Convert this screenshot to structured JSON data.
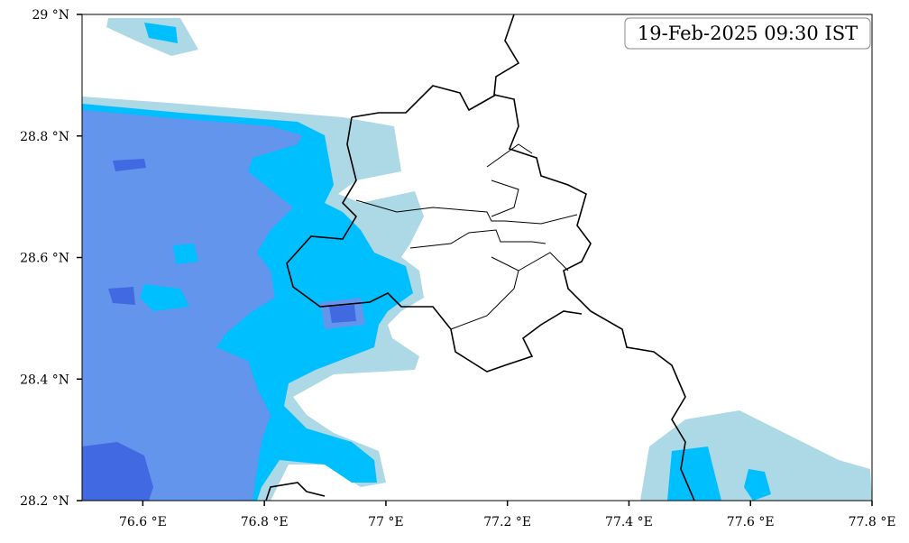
{
  "map": {
    "timestamp": "19-Feb-2025 09:30 IST",
    "xlim": [
      76.5,
      77.8
    ],
    "ylim": [
      28.2,
      29
    ],
    "xticks": [
      {
        "value": 76.6,
        "label": "76.6 °E"
      },
      {
        "value": 76.8,
        "label": "76.8 °E"
      },
      {
        "value": 77,
        "label": "77 °E"
      },
      {
        "value": 77.2,
        "label": "77.2 °E"
      },
      {
        "value": 77.4,
        "label": "77.4 °E"
      },
      {
        "value": 77.6,
        "label": "77.6 °E"
      },
      {
        "value": 77.8,
        "label": "77.8 °E"
      }
    ],
    "yticks": [
      {
        "value": 28.2,
        "label": "28.2 °N"
      },
      {
        "value": 28.4,
        "label": "28.4 °N"
      },
      {
        "value": 28.6,
        "label": "28.6 °N"
      },
      {
        "value": 28.8,
        "label": "28.8 °N"
      },
      {
        "value": 29,
        "label": "29 °N"
      }
    ]
  }
}
